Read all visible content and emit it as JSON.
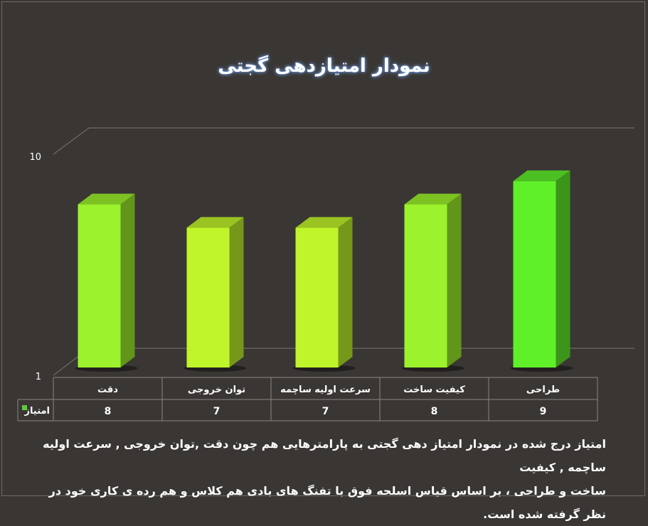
{
  "chart_data": {
    "type": "bar",
    "title": "نمودار امتیازدهی گجتی",
    "categories": [
      "دقت",
      "توان خروجی",
      "سرعت اولیه ساچمه",
      "کیفیت ساخت",
      "طراحی"
    ],
    "series": [
      {
        "name": "امتیاز",
        "values": [
          8,
          7,
          7,
          8,
          9
        ]
      }
    ],
    "y_ticks": [
      "1",
      "10"
    ],
    "ylim": [
      1,
      10
    ],
    "grid": false,
    "legend": "data-table-left",
    "colors": {
      "background": "#3a3634",
      "bar_light": "#bff52a",
      "bar_mid": "#9cf22c",
      "bar_dark_green": "#5ff02a",
      "legend_swatch": "#5ccc3a"
    },
    "bar_colors": [
      "#9cf22c",
      "#bff52a",
      "#bff52a",
      "#9cf22c",
      "#5ff02a"
    ]
  },
  "caption": {
    "line1": "امتیاز درج شده در نمودار امتیاز دهی گجتی  به پارامترهایی هم چون دقت ,توان خروجی , سرعت اولیه ساچمه , کیفیت",
    "line2": "ساخت و طراحی ، بر اساس قیاس اسلحه فوق با تفنگ های بادی هم کلاس و هم رده ی کاری خود در نظر گرفته شده است."
  }
}
